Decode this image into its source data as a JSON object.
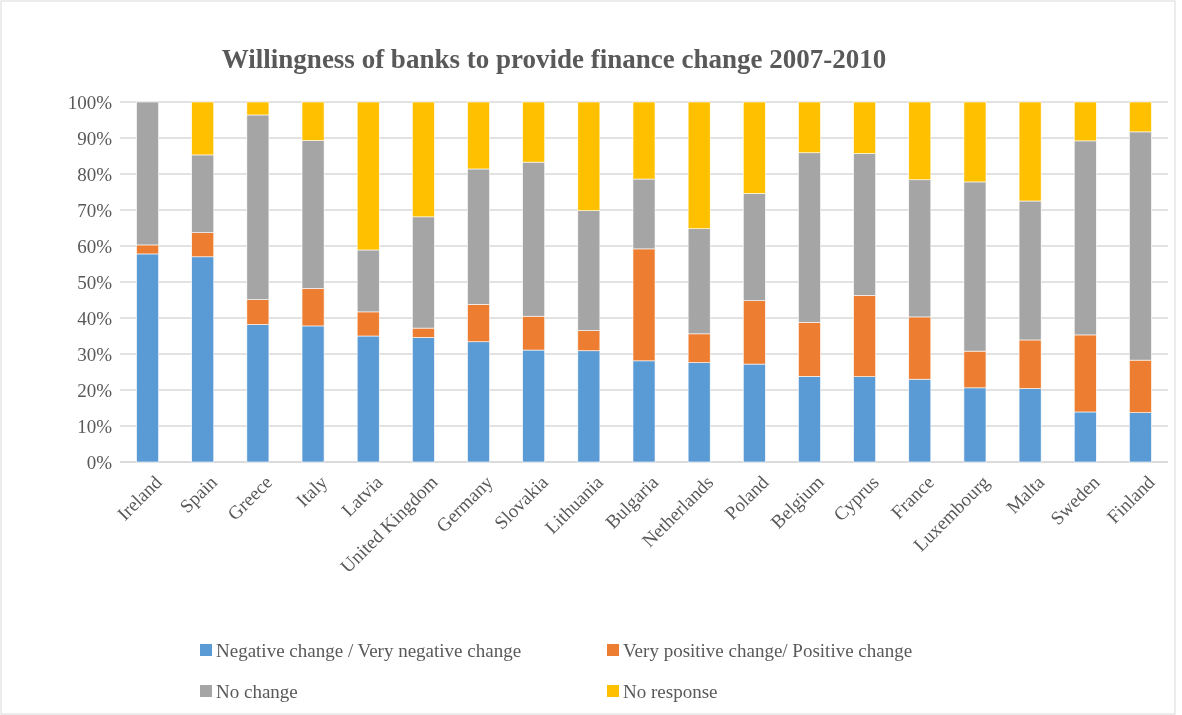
{
  "chart_data": {
    "type": "bar",
    "title": "Willingness of banks to provide finance change 2007-2010",
    "stacked": true,
    "categories": [
      "Ireland",
      "Spain",
      "Greece",
      "Italy",
      "Latvia",
      "United Kingdom",
      "Germany",
      "Slovakia",
      "Lithuania",
      "Bulgaria",
      "Netherlands",
      "Poland",
      "Belgium",
      "Cyprus",
      "France",
      "Luxembourg",
      "Malta",
      "Sweden",
      "Finland"
    ],
    "series": [
      {
        "name": "Negative change / Very negative change",
        "color": "#5b9bd5",
        "values": [
          57.8,
          57.0,
          38.2,
          37.8,
          35.0,
          34.6,
          33.4,
          31.1,
          30.9,
          28.1,
          27.6,
          27.2,
          23.8,
          23.7,
          23.0,
          20.6,
          20.4,
          13.9,
          13.7
        ]
      },
      {
        "name": "Very positive change/ Positive change",
        "color": "#ed7d31",
        "values": [
          2.5,
          6.7,
          6.9,
          10.4,
          6.7,
          2.6,
          10.4,
          9.4,
          5.6,
          31.1,
          8.0,
          17.6,
          15.0,
          22.6,
          17.3,
          10.2,
          13.5,
          21.4,
          14.6
        ]
      },
      {
        "name": "No change",
        "color": "#a5a5a5",
        "values": [
          39.7,
          21.6,
          51.3,
          41.1,
          17.2,
          30.9,
          37.6,
          42.8,
          33.3,
          19.4,
          29.2,
          29.8,
          47.1,
          39.4,
          38.1,
          47.0,
          38.6,
          53.9,
          63.4
        ]
      },
      {
        "name": "No response",
        "color": "#ffc000",
        "values": [
          0,
          14.7,
          3.6,
          10.7,
          41.1,
          31.9,
          18.6,
          16.7,
          30.2,
          21.4,
          35.2,
          25.4,
          14.1,
          14.3,
          21.6,
          22.2,
          27.5,
          10.8,
          8.3
        ]
      }
    ],
    "ylim": [
      0,
      100
    ],
    "yticks": [
      {
        "value": 0,
        "label": "0%"
      },
      {
        "value": 10,
        "label": "10%"
      },
      {
        "value": 20,
        "label": "20%"
      },
      {
        "value": 30,
        "label": "30%"
      },
      {
        "value": 40,
        "label": "40%"
      },
      {
        "value": 50,
        "label": "50%"
      },
      {
        "value": 60,
        "label": "60%"
      },
      {
        "value": 70,
        "label": "70%"
      },
      {
        "value": 80,
        "label": "80%"
      },
      {
        "value": 90,
        "label": "90%"
      },
      {
        "value": 100,
        "label": "100%"
      }
    ],
    "grid": "y",
    "legend": "bottom"
  }
}
